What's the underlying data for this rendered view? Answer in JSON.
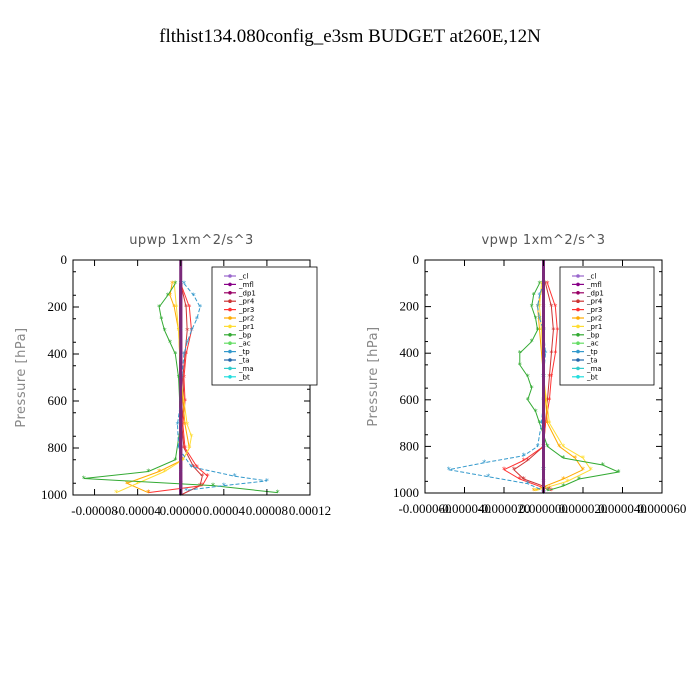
{
  "title": "flthist134.080config_e3sm  BUDGET at260E,12N",
  "chart_data": [
    {
      "type": "line",
      "title": "upwp   1xm^2/s^3",
      "xlabel": "",
      "ylabel": "Pressure  [hPa]",
      "xlim": [
        -0.0001,
        0.00012
      ],
      "ylim": [
        1000,
        0
      ],
      "xticks": [
        -8e-05,
        -4e-05,
        0.0,
        4e-05,
        8e-05,
        0.00012
      ],
      "xtick_labels": [
        "-0.00008",
        "-0.00004",
        "0.00000",
        "0.00004",
        "0.00008",
        "0.00012"
      ],
      "yticks": [
        0,
        200,
        400,
        600,
        800,
        1000
      ],
      "ytick_labels": [
        "0",
        "200",
        "400",
        "600",
        "800",
        "1000"
      ],
      "legend_position": "top-right",
      "series": [
        {
          "name": "_cl",
          "color": "#9966cc",
          "y": [
            100,
            300,
            500,
            700,
            900,
            1000
          ],
          "values": [
            0,
            0,
            0,
            0,
            0,
            0
          ]
        },
        {
          "name": "_mfl",
          "color": "#880088",
          "y": [
            100,
            300,
            500,
            700,
            900,
            1000
          ],
          "values": [
            0,
            0,
            0,
            0,
            0,
            0
          ]
        },
        {
          "name": "_dp1",
          "color": "#990066",
          "y": [
            100,
            200,
            300,
            400,
            500,
            600,
            700,
            800,
            900,
            950,
            1000
          ],
          "values": [
            0,
            0,
            0,
            0,
            0,
            0,
            0,
            0,
            0,
            0,
            0
          ]
        },
        {
          "name": "_pr4",
          "color": "#cc3333",
          "y": [
            100,
            200,
            300,
            400,
            500,
            600,
            700,
            800,
            880,
            920,
            960,
            1000
          ],
          "values": [
            0,
            5e-06,
            6e-06,
            4e-06,
            2e-06,
            3e-06,
            1e-06,
            3e-06,
            1.2e-05,
            2e-05,
            1.8e-05,
            0.0
          ]
        },
        {
          "name": "_pr3",
          "color": "#ff3333",
          "y": [
            100,
            200,
            300,
            400,
            500,
            600,
            700,
            800,
            880,
            920,
            960,
            990
          ],
          "values": [
            0,
            8e-06,
            1e-05,
            5e-06,
            3e-06,
            4e-06,
            2e-06,
            4e-06,
            1.5e-05,
            2.5e-05,
            2e-05,
            -3e-05
          ]
        },
        {
          "name": "_pr2",
          "color": "#ffaa00",
          "y": [
            100,
            150,
            200,
            300,
            500,
            700,
            800,
            850,
            900,
            950,
            990
          ],
          "values": [
            -8e-06,
            -1e-05,
            -6e-06,
            -2e-06,
            0.0,
            4e-06,
            8e-06,
            2e-06,
            -2e-05,
            -5e-05,
            -3e-05
          ]
        },
        {
          "name": "_pr1",
          "color": "#ffdd33",
          "y": [
            100,
            200,
            300,
            500,
            700,
            750,
            800,
            850,
            900,
            950,
            990
          ],
          "values": [
            -6e-06,
            -4e-06,
            -2e-06,
            0.0,
            6e-06,
            1e-05,
            8e-06,
            2e-06,
            -1.5e-05,
            -4e-05,
            -6e-05
          ]
        },
        {
          "name": "_bp",
          "color": "#33aa33",
          "y": [
            100,
            150,
            200,
            250,
            300,
            350,
            400,
            500,
            700,
            850,
            900,
            930,
            960,
            990
          ],
          "values": [
            -5e-06,
            -1.2e-05,
            -2e-05,
            -1.8e-05,
            -1.5e-05,
            -1e-05,
            -5e-06,
            -2e-06,
            0.0,
            -5e-06,
            -3e-05,
            -9e-05,
            3e-05,
            9e-05
          ]
        },
        {
          "name": "_ac",
          "color": "#66dd66",
          "y": [
            100,
            200,
            300,
            500,
            700,
            900,
            1000
          ],
          "values": [
            0,
            0,
            0,
            0,
            0,
            0,
            0
          ]
        },
        {
          "name": "_tp",
          "color": "#3399cc",
          "y": [
            100,
            150,
            200,
            250,
            300,
            350,
            400,
            500,
            600,
            700,
            800,
            880,
            920,
            940,
            960,
            980
          ],
          "values": [
            3e-06,
            1.2e-05,
            1.8e-05,
            1.5e-05,
            1e-05,
            6e-06,
            3e-06,
            1e-06,
            0.0,
            -3e-06,
            -2e-06,
            1e-05,
            5e-05,
            8e-05,
            4e-05,
            5e-06
          ]
        },
        {
          "name": "_ta",
          "color": "#2266aa",
          "y": [
            100,
            300,
            500,
            700,
            900,
            1000
          ],
          "values": [
            0,
            0,
            0,
            0,
            0,
            0
          ]
        },
        {
          "name": "_ma",
          "color": "#33cccc",
          "y": [
            100,
            300,
            500,
            700,
            900,
            1000
          ],
          "values": [
            0,
            0,
            0,
            0,
            0,
            0
          ]
        },
        {
          "name": "_bt",
          "color": "#22dddd",
          "y": [
            100,
            300,
            500,
            700,
            900,
            1000
          ],
          "values": [
            0,
            0,
            0,
            0,
            0,
            0
          ]
        }
      ]
    },
    {
      "type": "line",
      "title": "vpwp   1xm^2/s^3",
      "xlabel": "",
      "ylabel": "Pressure  [hPa]",
      "xlim": [
        -6e-05,
        6e-05
      ],
      "ylim": [
        1000,
        0
      ],
      "xticks": [
        -6e-05,
        -4e-05,
        -2e-05,
        0.0,
        2e-05,
        4e-05,
        6e-05
      ],
      "xtick_labels": [
        "-0.000060",
        "-0.000040",
        "-0.000020",
        "0.000000",
        "0.000020",
        "0.000040",
        "0.000060"
      ],
      "yticks": [
        0,
        200,
        400,
        600,
        800,
        1000
      ],
      "ytick_labels": [
        "0",
        "200",
        "400",
        "600",
        "800",
        "1000"
      ],
      "legend_position": "top-right",
      "series": [
        {
          "name": "_cl",
          "color": "#9966cc",
          "y": [
            100,
            300,
            500,
            700,
            900,
            1000
          ],
          "values": [
            0,
            0,
            0,
            0,
            0,
            0
          ]
        },
        {
          "name": "_mfl",
          "color": "#880088",
          "y": [
            100,
            300,
            500,
            700,
            900,
            1000
          ],
          "values": [
            0,
            0,
            0,
            0,
            0,
            0
          ]
        },
        {
          "name": "_dp1",
          "color": "#990066",
          "y": [
            100,
            200,
            300,
            400,
            500,
            600,
            700,
            800,
            900,
            950,
            1000
          ],
          "values": [
            0,
            0,
            0,
            0,
            0,
            0,
            0,
            0,
            0,
            0,
            0
          ]
        },
        {
          "name": "_pr4",
          "color": "#cc3333",
          "y": [
            100,
            200,
            300,
            400,
            500,
            600,
            700,
            800,
            860,
            900,
            940,
            980
          ],
          "values": [
            1e-06,
            4e-06,
            5e-06,
            4e-06,
            3e-06,
            2e-06,
            1e-06,
            0.0,
            -8e-06,
            -1.5e-05,
            -1e-05,
            3e-06
          ]
        },
        {
          "name": "_pr3",
          "color": "#ff3333",
          "y": [
            100,
            200,
            300,
            400,
            500,
            600,
            700,
            800,
            860,
            900,
            940,
            990
          ],
          "values": [
            2e-06,
            6e-06,
            7e-06,
            6e-06,
            4e-06,
            3e-06,
            1e-06,
            0.0,
            -1e-05,
            -2e-05,
            -1.2e-05,
            4e-06
          ]
        },
        {
          "name": "_pr2",
          "color": "#ffaa00",
          "y": [
            100,
            200,
            300,
            500,
            700,
            800,
            850,
            900,
            940,
            990
          ],
          "values": [
            0.0,
            -3e-06,
            -2e-06,
            0.0,
            2e-06,
            8e-06,
            1.6e-05,
            2e-05,
            1e-05,
            -5e-06
          ]
        },
        {
          "name": "_pr1",
          "color": "#ffdd33",
          "y": [
            100,
            200,
            300,
            500,
            700,
            800,
            850,
            900,
            950,
            990
          ],
          "values": [
            -1e-06,
            -2e-06,
            -1e-06,
            0.0,
            3e-06,
            1e-05,
            2e-05,
            2.4e-05,
            1.2e-05,
            -4e-06
          ]
        },
        {
          "name": "_bp",
          "color": "#33aa33",
          "y": [
            100,
            150,
            200,
            250,
            300,
            350,
            400,
            450,
            500,
            550,
            600,
            650,
            700,
            800,
            850,
            880,
            910,
            940,
            970,
            990
          ],
          "values": [
            -2e-06,
            -5e-06,
            -6e-06,
            -4e-06,
            -3e-06,
            -6e-06,
            -1.2e-05,
            -1.2e-05,
            -8e-06,
            -6e-06,
            -8e-06,
            -4e-06,
            -2e-06,
            2e-06,
            1e-05,
            3e-05,
            3.8e-05,
            1.8e-05,
            1e-05,
            2e-06
          ]
        },
        {
          "name": "_ac",
          "color": "#66dd66",
          "y": [
            100,
            300,
            500,
            700,
            900,
            1000
          ],
          "values": [
            0,
            0,
            0,
            0,
            0,
            0
          ]
        },
        {
          "name": "_tp",
          "color": "#3399cc",
          "y": [
            100,
            150,
            200,
            250,
            300,
            400,
            500,
            600,
            700,
            800,
            840,
            870,
            900,
            930,
            960,
            990
          ],
          "values": [
            0.0,
            -2e-06,
            -3e-06,
            -2e-06,
            0.0,
            1e-06,
            0.0,
            0.0,
            -1e-06,
            -3e-06,
            -1e-05,
            -3e-05,
            -4.8e-05,
            -2.8e-05,
            -8e-06,
            0.0
          ]
        },
        {
          "name": "_ta",
          "color": "#2266aa",
          "y": [
            100,
            300,
            500,
            700,
            900,
            1000
          ],
          "values": [
            0,
            0,
            0,
            0,
            0,
            0
          ]
        },
        {
          "name": "_ma",
          "color": "#33cccc",
          "y": [
            100,
            300,
            500,
            700,
            900,
            1000
          ],
          "values": [
            0,
            0,
            0,
            0,
            0,
            0
          ]
        },
        {
          "name": "_bt",
          "color": "#22dddd",
          "y": [
            100,
            300,
            500,
            700,
            900,
            1000
          ],
          "values": [
            0,
            0,
            0,
            0,
            0,
            0
          ]
        }
      ]
    }
  ]
}
